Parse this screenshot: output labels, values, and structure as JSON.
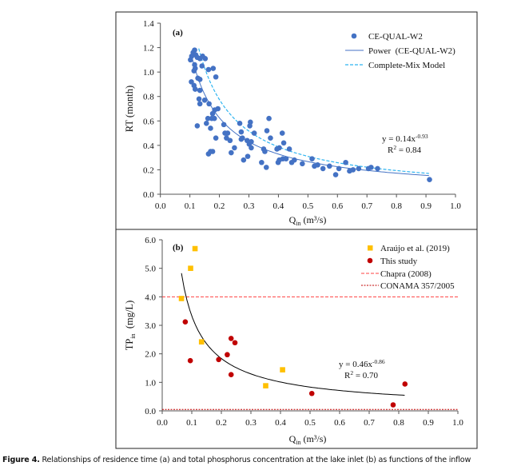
{
  "chart_data": [
    {
      "type": "scatter",
      "panel_label": "(a)",
      "xlabel": "Q",
      "xlabel_sub": "in",
      "xlabel_unit": " (m³/s)",
      "ylabel": "RT (month)",
      "xlim": [
        0.0,
        1.0
      ],
      "ylim": [
        0.0,
        1.4
      ],
      "xticks": [
        "0.0",
        "0.1",
        "0.2",
        "0.3",
        "0.4",
        "0.5",
        "0.6",
        "0.7",
        "0.8",
        "0.9",
        "1.0"
      ],
      "yticks": [
        "0.0",
        "0.2",
        "0.4",
        "0.6",
        "0.8",
        "1.0",
        "1.2",
        "1.4"
      ],
      "grid": false,
      "legend_position": "top-right",
      "series": [
        {
          "name": "CE-QUAL-W2",
          "kind": "points",
          "marker": "circle",
          "color": "#4472C4",
          "x": [
            0.116,
            0.111,
            0.106,
            0.12,
            0.125,
            0.134,
            0.102,
            0.116,
            0.118,
            0.114,
            0.143,
            0.152,
            0.141,
            0.163,
            0.179,
            0.188,
            0.127,
            0.134,
            0.105,
            0.114,
            0.118,
            0.134,
            0.131,
            0.134,
            0.15,
            0.165,
            0.195,
            0.184,
            0.177,
            0.174,
            0.161,
            0.183,
            0.125,
            0.156,
            0.17,
            0.188,
            0.215,
            0.219,
            0.228,
            0.224,
            0.236,
            0.251,
            0.24,
            0.163,
            0.17,
            0.177,
            0.269,
            0.274,
            0.278,
            0.274,
            0.282,
            0.296,
            0.294,
            0.301,
            0.303,
            0.305,
            0.308,
            0.308,
            0.318,
            0.343,
            0.35,
            0.354,
            0.359,
            0.361,
            0.368,
            0.373,
            0.395,
            0.403,
            0.399,
            0.403,
            0.413,
            0.418,
            0.415,
            0.426,
            0.437,
            0.445,
            0.454,
            0.481,
            0.514,
            0.522,
            0.533,
            0.551,
            0.573,
            0.594,
            0.605,
            0.628,
            0.641,
            0.653,
            0.672,
            0.705,
            0.714,
            0.736,
            0.912
          ],
          "y": [
            1.18,
            1.16,
            1.13,
            1.14,
            1.12,
            1.11,
            1.1,
            1.06,
            1.03,
            1.01,
            1.13,
            1.11,
            1.05,
            1.02,
            1.03,
            0.96,
            0.95,
            0.94,
            0.92,
            0.89,
            0.86,
            0.85,
            0.78,
            0.74,
            0.77,
            0.74,
            0.7,
            0.69,
            0.66,
            0.62,
            0.62,
            0.62,
            0.56,
            0.58,
            0.54,
            0.46,
            0.57,
            0.5,
            0.5,
            0.46,
            0.44,
            0.38,
            0.34,
            0.33,
            0.35,
            0.35,
            0.58,
            0.51,
            0.46,
            0.45,
            0.28,
            0.31,
            0.44,
            0.41,
            0.56,
            0.59,
            0.43,
            0.38,
            0.5,
            0.26,
            0.37,
            0.35,
            0.22,
            0.52,
            0.62,
            0.46,
            0.37,
            0.38,
            0.26,
            0.28,
            0.5,
            0.42,
            0.29,
            0.29,
            0.37,
            0.26,
            0.28,
            0.25,
            0.29,
            0.23,
            0.24,
            0.21,
            0.23,
            0.16,
            0.21,
            0.26,
            0.19,
            0.2,
            0.21,
            0.21,
            0.22,
            0.21,
            0.12
          ]
        },
        {
          "name": "Power  (CE-QUAL-W2)",
          "kind": "fit",
          "equation": {
            "a": 0.14,
            "b": -0.93
          },
          "x_range": [
            0.105,
            0.91
          ],
          "color": "#4472C4",
          "line": "solid"
        },
        {
          "name": "Complete-Mix Model",
          "kind": "fit",
          "equation": {
            "a": 0.155,
            "b": -1.0
          },
          "x_range": [
            0.13,
            0.91
          ],
          "color": "#2EB4F0",
          "line": "dashed"
        }
      ],
      "annotation": {
        "eq_prefix": "y = 0.14x",
        "eq_exp": "-0.93",
        "r2_prefix": "R",
        "r2_sup": "2",
        "r2_value": " = 0.84"
      }
    },
    {
      "type": "scatter",
      "panel_label": "(b)",
      "xlabel": "Q",
      "xlabel_sub": "in",
      "xlabel_unit": " (m³/s)",
      "ylabel": "TP",
      "ylabel_sub": "in",
      "ylabel_unit": "  (mg/L)",
      "xlim": [
        0.0,
        1.0
      ],
      "ylim": [
        0.0,
        6.0
      ],
      "xticks": [
        "0.0",
        "0.1",
        "0.2",
        "0.3",
        "0.4",
        "0.5",
        "0.6",
        "0.7",
        "0.8",
        "0.9",
        "1.0"
      ],
      "yticks": [
        "0.0",
        "1.0",
        "2.0",
        "3.0",
        "4.0",
        "5.0",
        "6.0"
      ],
      "grid": false,
      "legend_position": "top-right",
      "series": [
        {
          "name": "Araújo et al. (2019)",
          "kind": "points",
          "marker": "square",
          "color": "#FFC000",
          "x": [
            0.065,
            0.096,
            0.111,
            0.133,
            0.35,
            0.407
          ],
          "y": [
            3.94,
            5.0,
            5.69,
            2.42,
            0.88,
            1.44
          ]
        },
        {
          "name": "This study",
          "kind": "points",
          "marker": "circle",
          "color": "#C00000",
          "x": [
            0.078,
            0.095,
            0.191,
            0.22,
            0.233,
            0.246,
            0.233,
            0.506,
            0.781,
            0.821
          ],
          "y": [
            3.12,
            1.76,
            1.8,
            1.97,
            2.54,
            2.39,
            1.27,
            0.61,
            0.21,
            0.94
          ]
        },
        {
          "name": "Chapra (2008)",
          "kind": "hline",
          "value": 4.0,
          "color": "#FF4040",
          "line": "dashed"
        },
        {
          "name": "CONAMA 357/2005",
          "kind": "hline",
          "value": 0.05,
          "color": "#C00000",
          "line": "dotted"
        },
        {
          "kind": "fit",
          "equation": {
            "a": 0.46,
            "b": -0.86
          },
          "x_range": [
            0.065,
            0.82
          ],
          "color": "#000000",
          "line": "solid"
        }
      ],
      "annotation": {
        "eq_prefix": "y = 0.46x",
        "eq_exp": "-0.86",
        "r2_prefix": "R",
        "r2_sup": "2",
        "r2_value": " = 0.70"
      }
    }
  ],
  "caption": {
    "label": "Figure 4.",
    "text": " Relationships of residence time (a) and total phosphorus concentration at the lake inlet (b) as functions of the inflow"
  }
}
